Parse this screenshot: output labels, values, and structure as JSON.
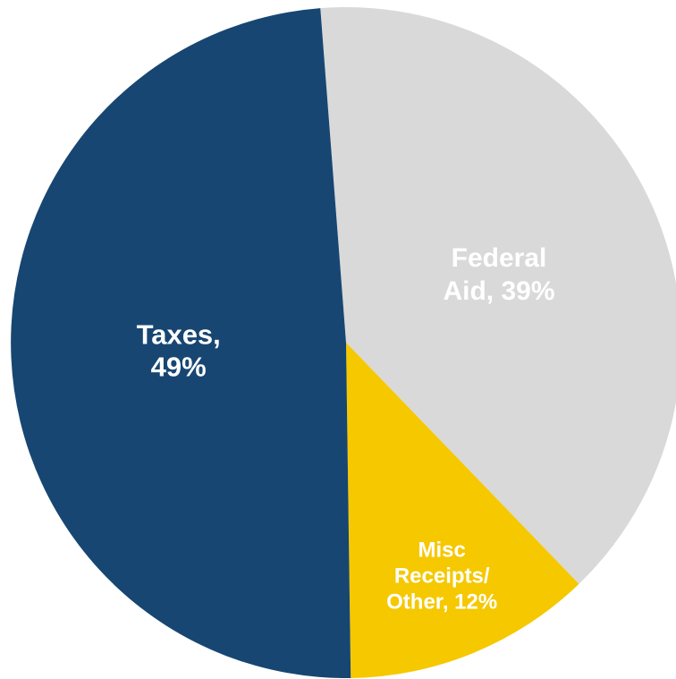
{
  "chart_data": {
    "type": "pie",
    "slices": [
      {
        "name": "Federal Aid",
        "value": 39,
        "color": "#d9d9d9",
        "label_lines": [
          "Federal",
          "Aid, 39%"
        ],
        "label_color": "#111111"
      },
      {
        "name": "Misc Receipts/Other",
        "value": 12,
        "color": "#f5c800",
        "label_lines": [
          "Misc",
          "Receipts/",
          "Other, 12%"
        ],
        "label_color": "#111111"
      },
      {
        "name": "Taxes",
        "value": 49,
        "color": "#174672",
        "label_lines": [
          "Taxes,",
          "49%"
        ],
        "label_color": "#ffffff"
      }
    ]
  }
}
